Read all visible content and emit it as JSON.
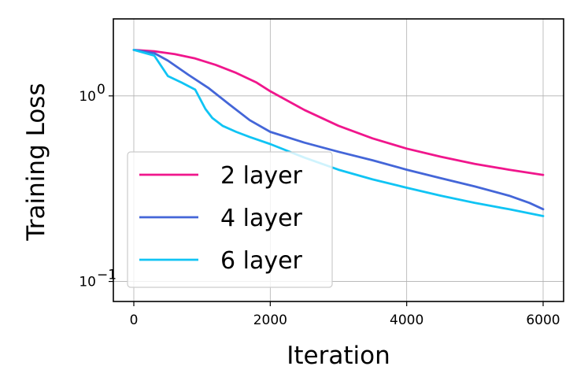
{
  "chart_data": {
    "type": "line",
    "title": "",
    "xlabel": "Iteration",
    "ylabel": "Training Loss",
    "xlim": [
      -300,
      6300
    ],
    "ylim": [
      0.078,
      2.6
    ],
    "yscale": "log",
    "grid": true,
    "legend_position": "lower-left",
    "xticks": [
      {
        "value": 0,
        "label": "0"
      },
      {
        "value": 2000,
        "label": "2000"
      },
      {
        "value": 4000,
        "label": "4000"
      },
      {
        "value": 6000,
        "label": "6000"
      }
    ],
    "yticks": [
      {
        "value": 1.0,
        "base": "10",
        "exponent": "0"
      },
      {
        "value": 0.1,
        "base": "10",
        "exponent": "−1"
      }
    ],
    "series": [
      {
        "name": "2 layer",
        "color": "#f0168c",
        "x": [
          0,
          300,
          600,
          900,
          1200,
          1500,
          1800,
          2000,
          2500,
          3000,
          3500,
          4000,
          4500,
          5000,
          5500,
          6000
        ],
        "y": [
          1.77,
          1.74,
          1.68,
          1.59,
          1.47,
          1.33,
          1.18,
          1.06,
          0.84,
          0.69,
          0.59,
          0.52,
          0.47,
          0.43,
          0.4,
          0.375
        ]
      },
      {
        "name": "4 layer",
        "color": "#4466d8",
        "x": [
          0,
          300,
          500,
          800,
          1100,
          1400,
          1700,
          2000,
          2500,
          3000,
          3500,
          4000,
          4500,
          5000,
          5500,
          5800,
          6000
        ],
        "y": [
          1.77,
          1.7,
          1.55,
          1.3,
          1.1,
          0.9,
          0.74,
          0.64,
          0.56,
          0.5,
          0.45,
          0.4,
          0.36,
          0.325,
          0.29,
          0.265,
          0.245
        ]
      },
      {
        "name": "6 layer",
        "color": "#10c4f4",
        "x": [
          0,
          300,
          500,
          700,
          900,
          1050,
          1150,
          1300,
          1500,
          1700,
          2000,
          2500,
          3000,
          3500,
          4000,
          4500,
          5000,
          5500,
          6000
        ],
        "y": [
          1.77,
          1.65,
          1.28,
          1.18,
          1.08,
          0.85,
          0.76,
          0.69,
          0.64,
          0.6,
          0.55,
          0.465,
          0.4,
          0.355,
          0.32,
          0.29,
          0.265,
          0.245,
          0.225
        ]
      }
    ]
  }
}
